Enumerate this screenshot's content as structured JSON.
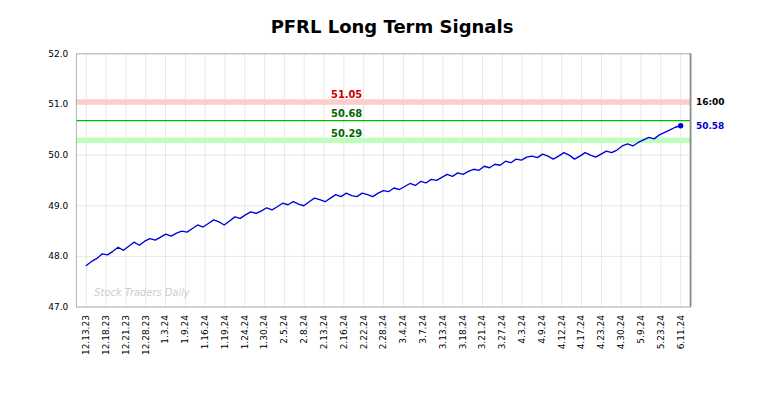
{
  "chart_data": {
    "type": "line",
    "title": "PFRL Long Term Signals",
    "color": "#0000dd",
    "grid": true,
    "xlim": [
      -0.5,
      30.5
    ],
    "xticks": [
      {
        "value": 0,
        "label": "12.13.23"
      },
      {
        "value": 1,
        "label": "12.18.23"
      },
      {
        "value": 2,
        "label": "12.21.23"
      },
      {
        "value": 3,
        "label": "12.28.23"
      },
      {
        "value": 4,
        "label": "1.3.24"
      },
      {
        "value": 5,
        "label": "1.9.24"
      },
      {
        "value": 6,
        "label": "1.16.24"
      },
      {
        "value": 7,
        "label": "1.19.24"
      },
      {
        "value": 8,
        "label": "1.24.24"
      },
      {
        "value": 9,
        "label": "1.30.24"
      },
      {
        "value": 10,
        "label": "2.5.24"
      },
      {
        "value": 11,
        "label": "2.8.24"
      },
      {
        "value": 12,
        "label": "2.13.24"
      },
      {
        "value": 13,
        "label": "2.16.24"
      },
      {
        "value": 14,
        "label": "2.22.24"
      },
      {
        "value": 15,
        "label": "2.28.24"
      },
      {
        "value": 16,
        "label": "3.4.24"
      },
      {
        "value": 17,
        "label": "3.7.24"
      },
      {
        "value": 18,
        "label": "3.13.24"
      },
      {
        "value": 19,
        "label": "3.18.24"
      },
      {
        "value": 20,
        "label": "3.21.24"
      },
      {
        "value": 21,
        "label": "3.27.24"
      },
      {
        "value": 22,
        "label": "4.3.24"
      },
      {
        "value": 23,
        "label": "4.9.24"
      },
      {
        "value": 24,
        "label": "4.12.24"
      },
      {
        "value": 25,
        "label": "4.17.24"
      },
      {
        "value": 26,
        "label": "4.23.24"
      },
      {
        "value": 27,
        "label": "4.30.24"
      },
      {
        "value": 28,
        "label": "5.9.24"
      },
      {
        "value": 29,
        "label": "5.23.24"
      },
      {
        "value": 30,
        "label": "6.11.24"
      }
    ],
    "ylim": [
      47,
      52
    ],
    "yticks": [
      47,
      48,
      49,
      50,
      51,
      52
    ],
    "values": [
      47.82,
      47.9,
      47.96,
      48.05,
      48.03,
      48.1,
      48.18,
      48.12,
      48.2,
      48.28,
      48.22,
      48.3,
      48.35,
      48.32,
      48.38,
      48.44,
      48.4,
      48.46,
      48.5,
      48.48,
      48.55,
      48.62,
      48.58,
      48.65,
      48.72,
      48.68,
      48.62,
      48.7,
      48.78,
      48.75,
      48.82,
      48.88,
      48.85,
      48.9,
      48.96,
      48.92,
      48.98,
      49.05,
      49.02,
      49.08,
      49.03,
      49.0,
      49.08,
      49.15,
      49.12,
      49.08,
      49.15,
      49.22,
      49.18,
      49.25,
      49.2,
      49.18,
      49.25,
      49.22,
      49.18,
      49.25,
      49.3,
      49.28,
      49.35,
      49.32,
      49.38,
      49.44,
      49.4,
      49.48,
      49.45,
      49.52,
      49.5,
      49.56,
      49.62,
      49.58,
      49.65,
      49.62,
      49.68,
      49.72,
      49.7,
      49.78,
      49.75,
      49.82,
      49.8,
      49.88,
      49.85,
      49.92,
      49.9,
      49.96,
      49.98,
      49.95,
      50.02,
      49.98,
      49.92,
      49.98,
      50.05,
      50.0,
      49.92,
      49.98,
      50.05,
      50.0,
      49.96,
      50.02,
      50.08,
      50.05,
      50.1,
      50.18,
      50.22,
      50.18,
      50.25,
      50.3,
      50.35,
      50.32,
      50.4,
      50.45,
      50.5,
      50.55,
      50.58
    ],
    "hlines": [
      {
        "value": 51.05,
        "color": "#ffcccc",
        "line_style": "band",
        "label": "51.05",
        "label_color": "#cc0000"
      },
      {
        "value": 50.68,
        "color": "#00bb00",
        "line_style": "solid",
        "label": "50.68",
        "label_color": "#006600"
      },
      {
        "value": 50.29,
        "color": "#bbffbb",
        "line_style": "band",
        "label": "50.29",
        "label_color": "#006600"
      }
    ],
    "annotations": [
      {
        "text": "16:00",
        "y": 51.05,
        "color": "#000000"
      },
      {
        "text": "50.58",
        "y": 50.58,
        "color": "#0000cc"
      }
    ],
    "watermark": "Stock Traders Daily",
    "watermark_color": "#cccccc"
  }
}
